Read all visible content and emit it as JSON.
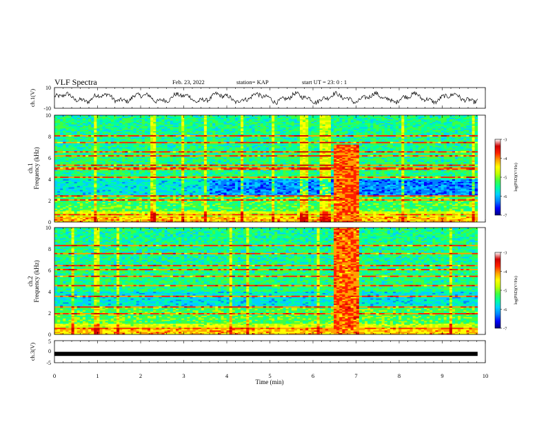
{
  "header": {
    "title": "VLF Spectra",
    "date": "Feb. 23, 2022",
    "station": "station= KAP",
    "start": "start  UT =   23: 0  : 1"
  },
  "chart_data": [
    {
      "type": "line",
      "panel": "ch1-voltage",
      "ylabel": "ch.1(V)",
      "ylim": [
        -10,
        10
      ],
      "yticks": [
        "10",
        "-10"
      ],
      "xlim": [
        0,
        10
      ],
      "description_values": {
        "approx_range": [
          -6,
          6
        ]
      },
      "color": "#000000"
    },
    {
      "type": "heatmap",
      "panel": "ch1-spectrogram",
      "ylabel": "ch.1\nFrequency (kHz)",
      "ylabel_lines": [
        "ch.1",
        "Frequency (kHz)"
      ],
      "ylim": [
        0,
        10
      ],
      "yticks": [
        "0",
        "2",
        "4",
        "6",
        "8",
        "10"
      ],
      "xlim": [
        0,
        10
      ],
      "colorbar": {
        "label": "log(PSD)(V²/Hz)",
        "range": [
          -7,
          -3
        ],
        "ticks": [
          "-3",
          "-4",
          "-5",
          "-6",
          "-7"
        ]
      },
      "burst_interval_min": [
        6.45,
        7.1
      ]
    },
    {
      "type": "heatmap",
      "panel": "ch2-spectrogram",
      "ylabel_lines": [
        "ch.2",
        "Frequency (kHz)"
      ],
      "ylim": [
        0,
        10
      ],
      "yticks": [
        "0",
        "2",
        "4",
        "6",
        "8",
        "10"
      ],
      "xlim": [
        0,
        10
      ],
      "colorbar": {
        "label": "log(PSD)(V²/Hz)",
        "range": [
          -7,
          -3
        ],
        "ticks": [
          "-3",
          "-4",
          "-5",
          "-6",
          "-7"
        ]
      },
      "burst_interval_min": [
        6.45,
        7.1
      ]
    },
    {
      "type": "line",
      "panel": "ch3-voltage",
      "ylabel": "ch.3(V)",
      "ylim": [
        -5,
        5
      ],
      "yticks": [
        "5",
        "0",
        "-5"
      ],
      "xlim": [
        0,
        10
      ],
      "constant_value": -1,
      "color": "#000000"
    }
  ],
  "xaxis": {
    "label": "Time  (min)",
    "ticks": [
      "0",
      "1",
      "2",
      "3",
      "4",
      "5",
      "6",
      "7",
      "8",
      "9",
      "10"
    ]
  },
  "colormap": [
    "#000080",
    "#0000ff",
    "#0080ff",
    "#00d0ff",
    "#00ffa0",
    "#40ff40",
    "#c0ff00",
    "#ffff00",
    "#ffa000",
    "#ff2000",
    "#d00000",
    "#ffffff"
  ]
}
